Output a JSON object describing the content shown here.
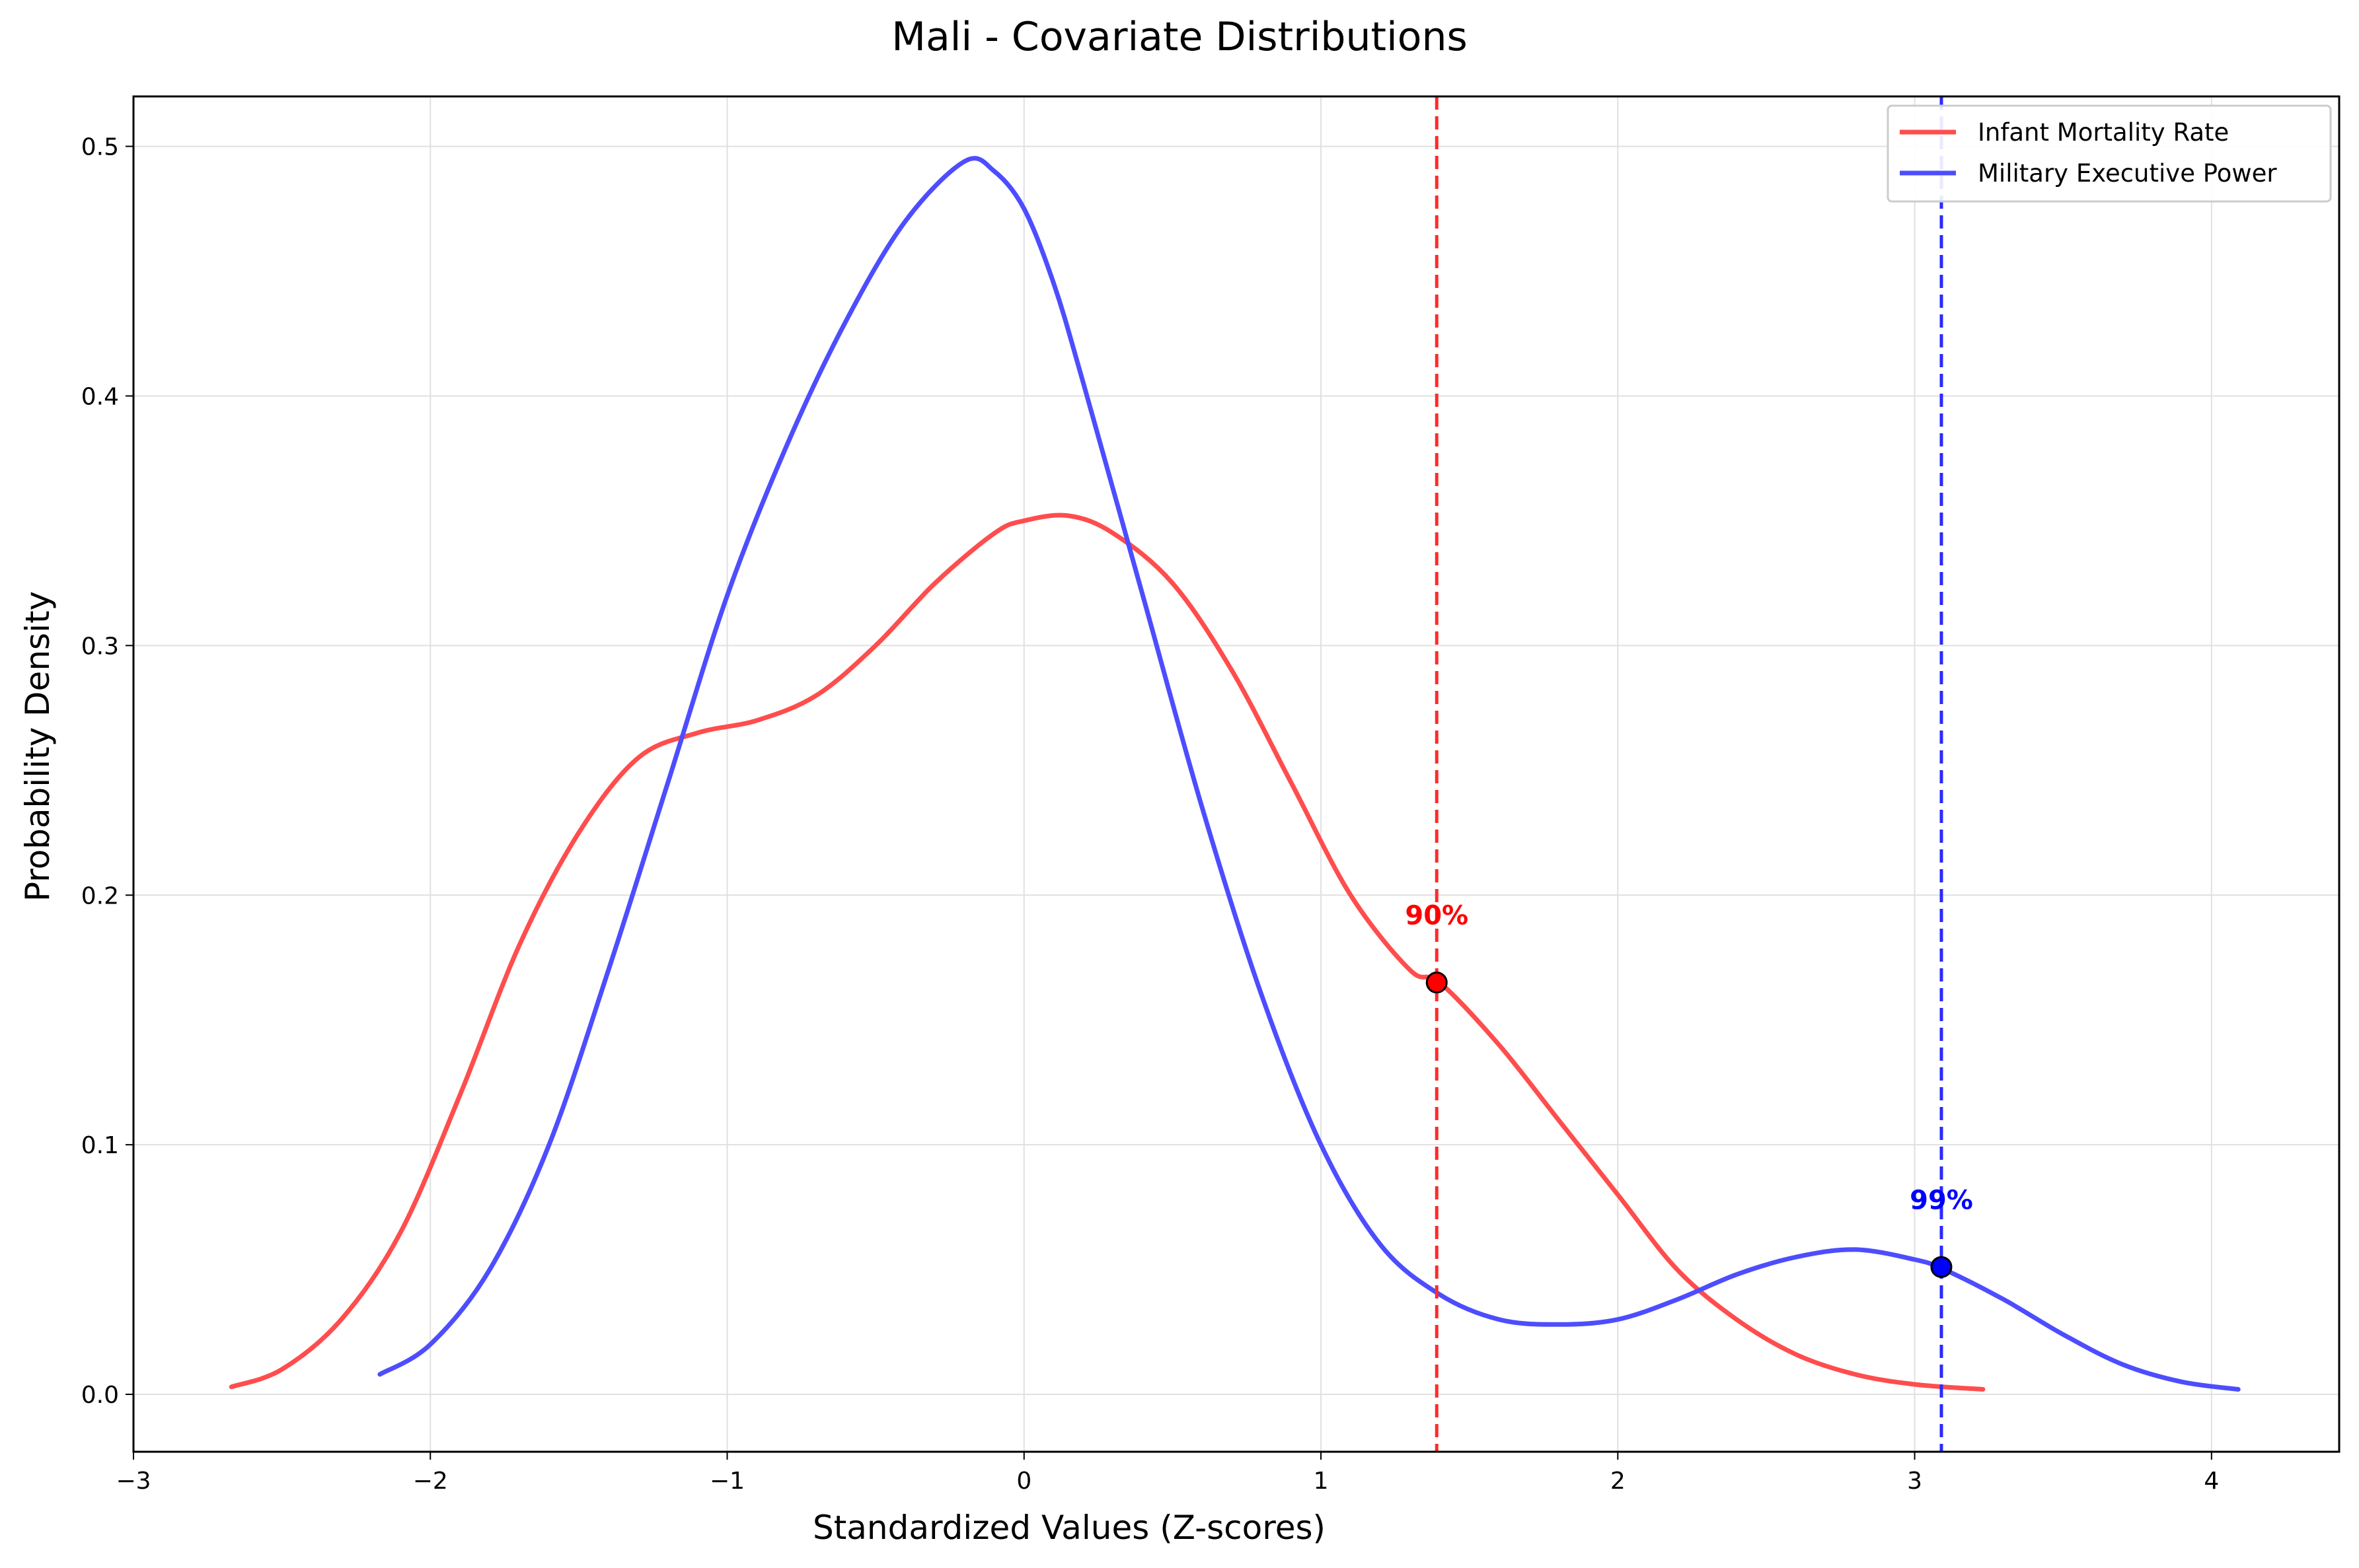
{
  "chart_data": {
    "type": "line",
    "title": "Mali - Covariate Distributions",
    "xlabel": "Standardized Values (Z-scores)",
    "ylabel": "Probability Density",
    "xlim": [
      -3.0,
      4.43
    ],
    "ylim": [
      -0.023,
      0.52
    ],
    "x_ticks": [
      -3,
      -2,
      -1,
      0,
      1,
      2,
      3,
      4
    ],
    "x_tick_labels": [
      "−3",
      "−2",
      "−1",
      "0",
      "1",
      "2",
      "3",
      "4"
    ],
    "y_ticks": [
      0.0,
      0.1,
      0.2,
      0.3,
      0.4,
      0.5
    ],
    "y_tick_labels": [
      "0.0",
      "0.1",
      "0.2",
      "0.3",
      "0.4",
      "0.5"
    ],
    "grid": true,
    "legend_position": "top-right",
    "series": [
      {
        "name": "Infant Mortality Rate",
        "color": "#ff4d4d",
        "x": [
          -2.67,
          -2.5,
          -2.3,
          -2.1,
          -1.9,
          -1.7,
          -1.5,
          -1.3,
          -1.1,
          -0.9,
          -0.7,
          -0.5,
          -0.3,
          -0.1,
          0.0,
          0.15,
          0.3,
          0.5,
          0.7,
          0.9,
          1.1,
          1.3,
          1.4,
          1.6,
          1.8,
          2.0,
          2.2,
          2.4,
          2.6,
          2.8,
          3.0,
          3.23
        ],
        "values": [
          0.003,
          0.01,
          0.03,
          0.065,
          0.12,
          0.18,
          0.225,
          0.255,
          0.265,
          0.27,
          0.28,
          0.3,
          0.325,
          0.345,
          0.35,
          0.352,
          0.345,
          0.325,
          0.29,
          0.245,
          0.2,
          0.17,
          0.165,
          0.14,
          0.11,
          0.08,
          0.05,
          0.03,
          0.016,
          0.008,
          0.004,
          0.002
        ]
      },
      {
        "name": "Military Executive Power",
        "color": "#4d4dff",
        "x": [
          -2.17,
          -2.0,
          -1.8,
          -1.6,
          -1.4,
          -1.2,
          -1.0,
          -0.8,
          -0.6,
          -0.4,
          -0.2,
          -0.1,
          0.0,
          0.1,
          0.2,
          0.4,
          0.6,
          0.8,
          1.0,
          1.2,
          1.4,
          1.6,
          1.8,
          2.0,
          2.2,
          2.4,
          2.6,
          2.8,
          3.0,
          3.1,
          3.3,
          3.5,
          3.7,
          3.9,
          4.09
        ],
        "values": [
          0.008,
          0.02,
          0.05,
          0.1,
          0.17,
          0.245,
          0.32,
          0.38,
          0.43,
          0.47,
          0.494,
          0.49,
          0.475,
          0.445,
          0.405,
          0.32,
          0.235,
          0.16,
          0.1,
          0.06,
          0.04,
          0.03,
          0.028,
          0.03,
          0.038,
          0.048,
          0.055,
          0.058,
          0.054,
          0.05,
          0.038,
          0.024,
          0.012,
          0.005,
          0.002
        ]
      }
    ],
    "reference_lines": [
      {
        "x": 1.39,
        "color": "#ff2b2b"
      },
      {
        "x": 3.09,
        "color": "#2b2bff"
      }
    ],
    "markers": [
      {
        "x": 1.39,
        "y": 0.165,
        "color": "#ff0000",
        "label": "90%"
      },
      {
        "x": 3.09,
        "y": 0.051,
        "color": "#0000ff",
        "label": "99%"
      }
    ]
  }
}
